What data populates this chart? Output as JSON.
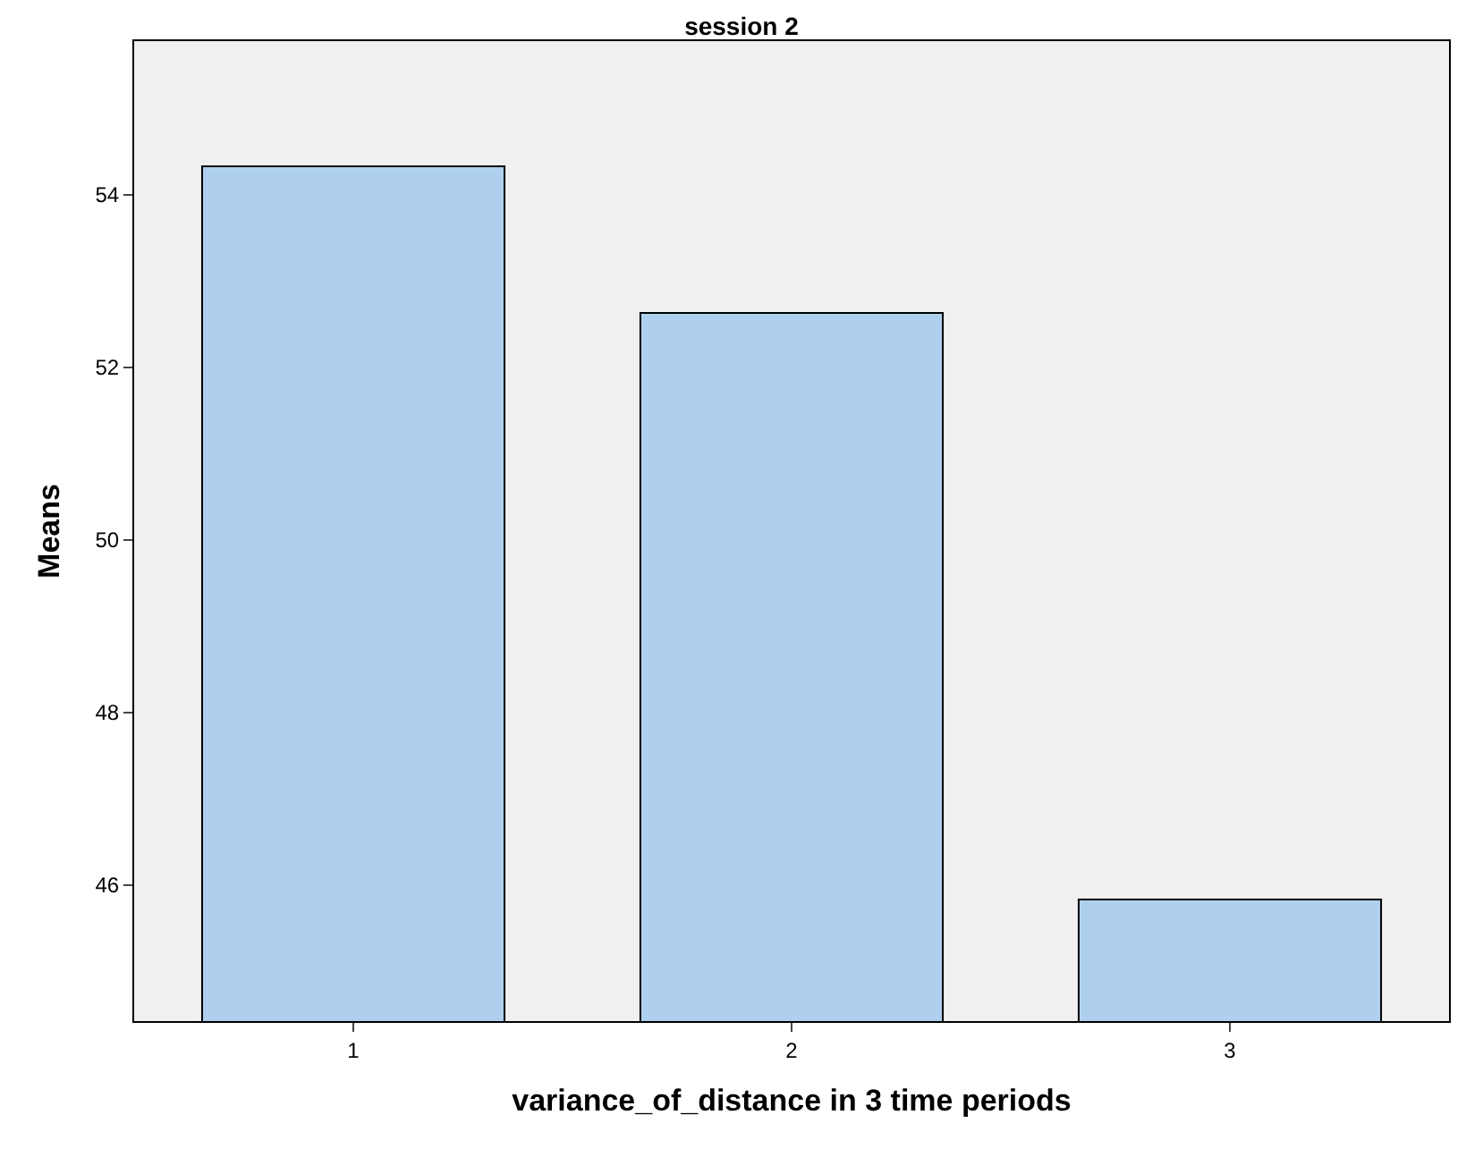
{
  "chart_data": {
    "type": "bar",
    "title": "session 2",
    "xlabel": "variance_of_distance in 3 time periods",
    "ylabel": "Means",
    "categories": [
      "1",
      "2",
      "3"
    ],
    "values": [
      54.33,
      52.63,
      45.83
    ],
    "color": "#aed0ee",
    "ylim": [
      44.42,
      55.78
    ],
    "yticks": [
      46,
      48,
      50,
      52,
      54
    ],
    "grid": false,
    "legend": false
  }
}
